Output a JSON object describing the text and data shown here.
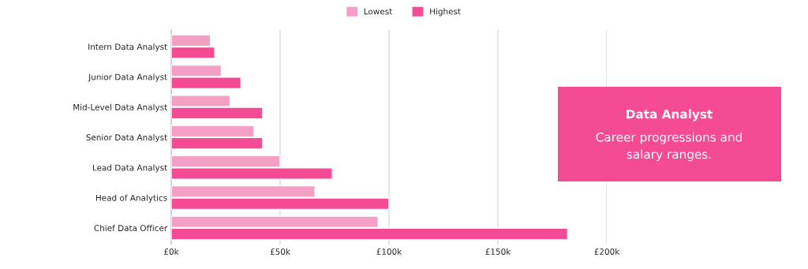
{
  "chart_data": {
    "type": "bar",
    "orientation": "horizontal",
    "title": "Data Analyst",
    "subtitle": "Career progressions and salary ranges.",
    "categories": [
      "Intern Data Analyst",
      "Junior Data Analyst",
      "Mid-Level Data Analyst",
      "Senior Data Analyst",
      "Lead Data Analyst",
      "Head of Analytics",
      "Chief Data Officer"
    ],
    "series": [
      {
        "name": "Lowest",
        "color": "#f4a0c4",
        "values": [
          18,
          23,
          27,
          38,
          50,
          66,
          95
        ]
      },
      {
        "name": "Highest",
        "color": "#f54b94",
        "values": [
          20,
          32,
          42,
          42,
          74,
          100,
          182
        ]
      }
    ],
    "xlim": [
      0,
      200
    ],
    "xticks": [
      {
        "value": 0,
        "label": "£0k"
      },
      {
        "value": 50,
        "label": "£50k"
      },
      {
        "value": 100,
        "label": "£100k"
      },
      {
        "value": 150,
        "label": "£150k"
      },
      {
        "value": 200,
        "label": "£200k"
      }
    ],
    "grid": "x",
    "legend": "top"
  }
}
